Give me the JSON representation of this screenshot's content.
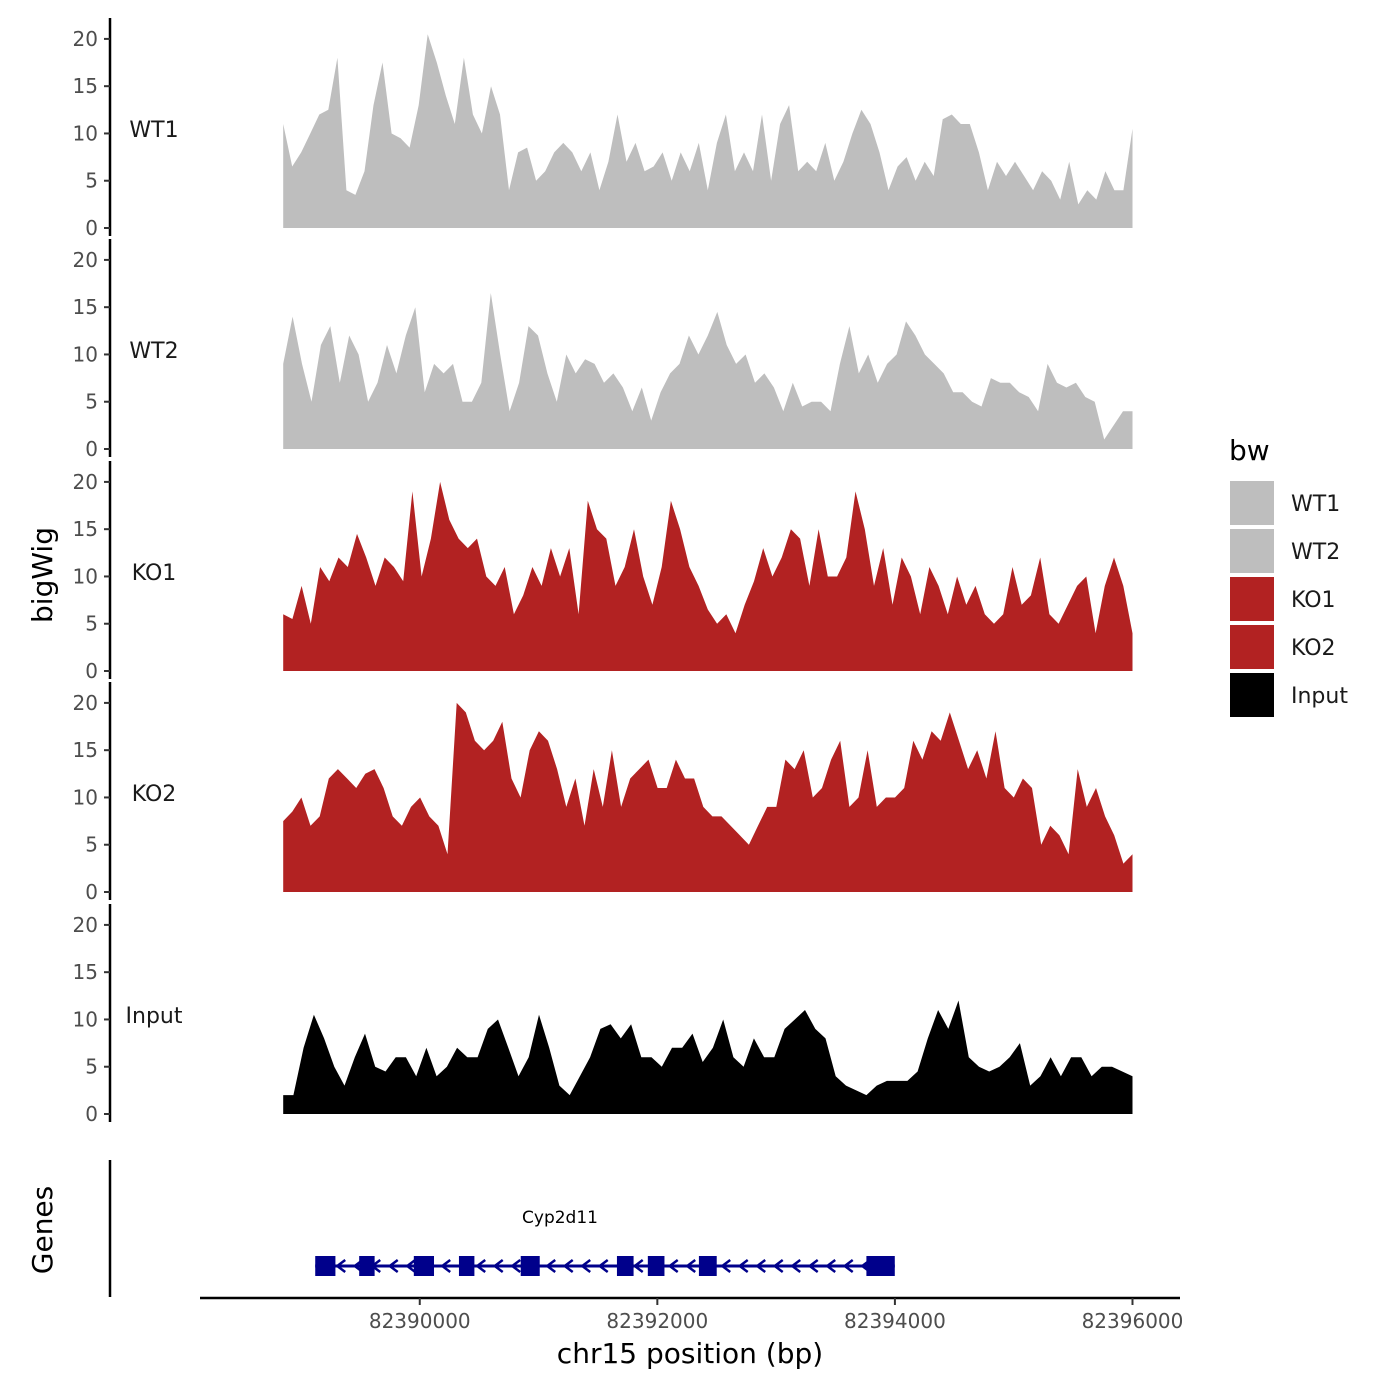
{
  "chart_data": {
    "type": "area",
    "ylabel": "bigWig",
    "xlabel": "chr15 position (bp)",
    "genes_label": "Genes",
    "x_range": [
      82388850,
      82396000
    ],
    "xlim": [
      82388150,
      82396400
    ],
    "x_ticks": [
      82390000,
      82392000,
      82394000,
      82396000
    ],
    "x_tick_labels": [
      "82390000",
      "82392000",
      "82394000",
      "82396000"
    ],
    "y_range": [
      0,
      22
    ],
    "y_ticks": [
      0,
      5,
      10,
      15,
      20
    ],
    "y_tick_labels": [
      "0",
      "5",
      "10",
      "15",
      "20"
    ],
    "legend": {
      "title": "bw",
      "position": "right",
      "items": [
        {
          "label": "WT1",
          "color": "#bebebe"
        },
        {
          "label": "WT2",
          "color": "#bebebe"
        },
        {
          "label": "KO1",
          "color": "#b22222"
        },
        {
          "label": "KO2",
          "color": "#b22222"
        },
        {
          "label": "Input",
          "color": "#000000"
        }
      ]
    },
    "series": [
      {
        "name": "WT1",
        "color": "#bebebe",
        "values": [
          11,
          6.5,
          8,
          10,
          12,
          12.5,
          18,
          4,
          3.5,
          6,
          13,
          17.5,
          10,
          9.5,
          8.5,
          13,
          20.5,
          17.5,
          14,
          11,
          18,
          12,
          10,
          15,
          12,
          4,
          8,
          8.5,
          5,
          6,
          8,
          9,
          8,
          6,
          8,
          4,
          7,
          12,
          7,
          9,
          6,
          6.5,
          8,
          5,
          8,
          6,
          9,
          4,
          9,
          12,
          6,
          8,
          6,
          12,
          5,
          11,
          13,
          6,
          7,
          6,
          9,
          5,
          7,
          10,
          12.5,
          11,
          8,
          4,
          6.5,
          7.5,
          5,
          7,
          5.5,
          11.5,
          12,
          11,
          11,
          8,
          4,
          7,
          5.5,
          7,
          5.5,
          4,
          6,
          5,
          3,
          7,
          2.5,
          4,
          3,
          6,
          4,
          4,
          10.5
        ]
      },
      {
        "name": "WT2",
        "color": "#bebebe",
        "values": [
          9,
          14,
          9,
          5,
          11,
          13,
          7,
          12,
          10,
          5,
          7,
          11,
          8,
          12,
          15,
          6,
          9,
          8,
          9,
          5,
          5,
          7,
          16.5,
          10,
          4,
          7,
          13,
          12,
          8,
          5,
          10,
          8,
          9.5,
          9,
          7,
          8,
          6.5,
          4,
          6.5,
          3,
          6,
          8,
          9,
          12,
          10,
          12,
          14.5,
          11,
          9,
          10,
          7,
          8,
          6.5,
          4,
          7,
          4.5,
          5,
          5,
          4,
          9,
          13,
          8,
          10,
          7,
          9,
          10,
          13.5,
          12,
          10,
          9,
          8,
          6,
          6,
          5,
          4.5,
          7.5,
          7,
          7,
          6,
          5.5,
          4,
          9,
          7,
          6.5,
          7,
          5.5,
          5,
          1,
          2.5,
          4,
          4
        ]
      },
      {
        "name": "KO1",
        "color": "#b22222",
        "values": [
          6,
          5.5,
          9,
          5,
          11,
          9.5,
          12,
          11,
          14.5,
          12,
          9,
          12,
          11,
          9.5,
          19,
          10,
          14,
          20,
          16,
          14,
          13,
          14,
          10,
          9,
          11,
          6,
          8,
          11,
          9,
          13,
          10,
          13,
          6,
          18,
          15,
          14,
          9,
          11,
          15,
          10,
          7,
          11,
          18,
          15,
          11,
          9,
          6.5,
          5,
          6,
          4,
          7,
          9.5,
          13,
          10,
          12,
          15,
          14,
          9,
          15,
          10,
          10,
          12,
          19,
          15,
          9,
          13,
          7,
          12,
          10,
          6,
          11,
          9,
          6,
          10,
          7,
          9,
          6,
          5,
          6,
          11,
          7,
          8,
          12,
          6,
          5,
          7,
          9,
          10,
          4,
          9,
          12,
          9,
          4
        ]
      },
      {
        "name": "KO2",
        "color": "#b22222",
        "values": [
          7.5,
          8.5,
          10,
          7,
          8,
          12,
          13,
          12,
          11,
          12.5,
          13,
          11,
          8,
          7,
          9,
          10,
          8,
          7,
          4,
          20,
          19,
          16,
          15,
          16,
          18,
          12,
          10,
          15,
          17,
          16,
          13,
          9,
          12,
          7,
          13,
          9,
          15,
          9,
          12,
          13,
          14,
          11,
          11,
          14,
          12,
          12,
          9,
          8,
          8,
          7,
          6,
          5,
          7,
          9,
          9,
          14,
          13,
          15,
          10,
          11,
          14,
          16,
          9,
          10,
          15,
          9,
          10,
          10,
          11,
          16,
          14,
          17,
          16,
          19,
          16,
          13,
          15,
          12,
          17,
          11,
          10,
          12,
          11,
          5,
          7,
          6,
          4,
          13,
          9,
          11,
          8,
          6,
          3,
          4
        ]
      },
      {
        "name": "Input",
        "color": "#000000",
        "values": [
          2,
          2,
          7,
          10.5,
          8,
          5,
          3,
          6,
          8.5,
          5,
          4.5,
          6,
          6,
          4,
          7,
          4,
          5,
          7,
          6,
          6,
          9,
          10,
          7,
          4,
          6,
          10.5,
          7,
          3,
          2,
          4,
          6,
          9,
          9.5,
          8,
          9.5,
          6,
          6,
          5,
          7,
          7,
          8.5,
          5.5,
          7,
          10,
          6,
          5,
          8,
          6,
          6,
          9,
          10,
          11,
          9,
          8,
          4,
          3,
          2.5,
          2,
          3,
          3.5,
          3.5,
          3.5,
          4.5,
          8,
          11,
          9,
          12,
          6,
          5,
          4.5,
          5,
          6,
          7.5,
          3,
          4,
          6,
          4,
          6,
          6,
          4,
          5,
          5,
          4.5,
          4
        ]
      }
    ],
    "genes": [
      {
        "name": "Cyp2d11",
        "label": "Cyp2d11",
        "strand": "-",
        "color": "#00008b",
        "start": 82389120,
        "end": 82393999,
        "exons": [
          [
            82389120,
            82389290
          ],
          [
            82389490,
            82389620
          ],
          [
            82389950,
            82390120
          ],
          [
            82390330,
            82390460
          ],
          [
            82390850,
            82391010
          ],
          [
            82391660,
            82391800
          ],
          [
            82391920,
            82392060
          ],
          [
            82392350,
            82392500
          ],
          [
            82393760,
            82393999
          ]
        ]
      }
    ]
  }
}
